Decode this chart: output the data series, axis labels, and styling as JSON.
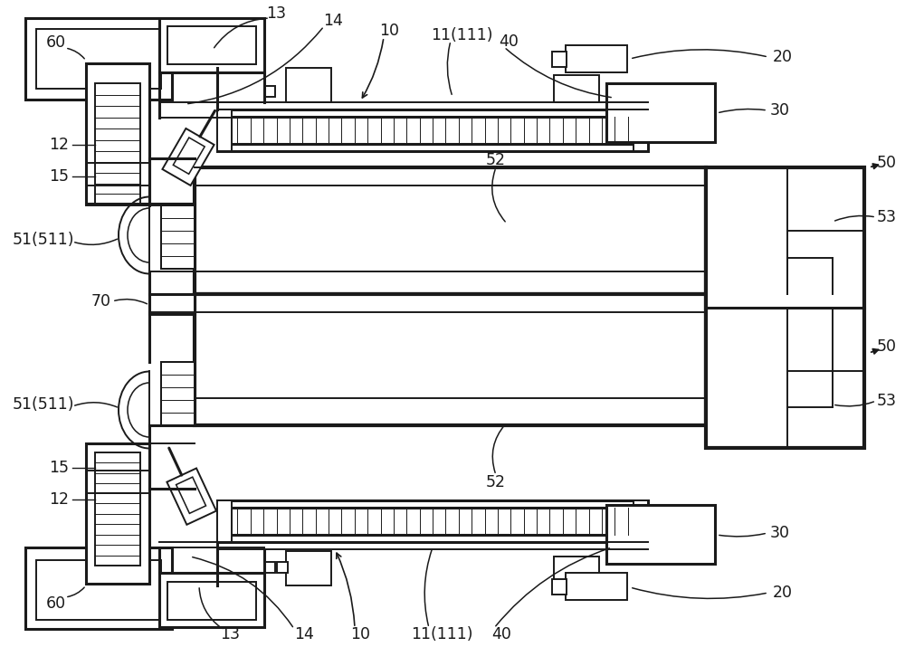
{
  "bg_color": "#ffffff",
  "lc": "#1a1a1a",
  "lw": 1.4,
  "lw2": 2.2,
  "lw3": 3.0
}
